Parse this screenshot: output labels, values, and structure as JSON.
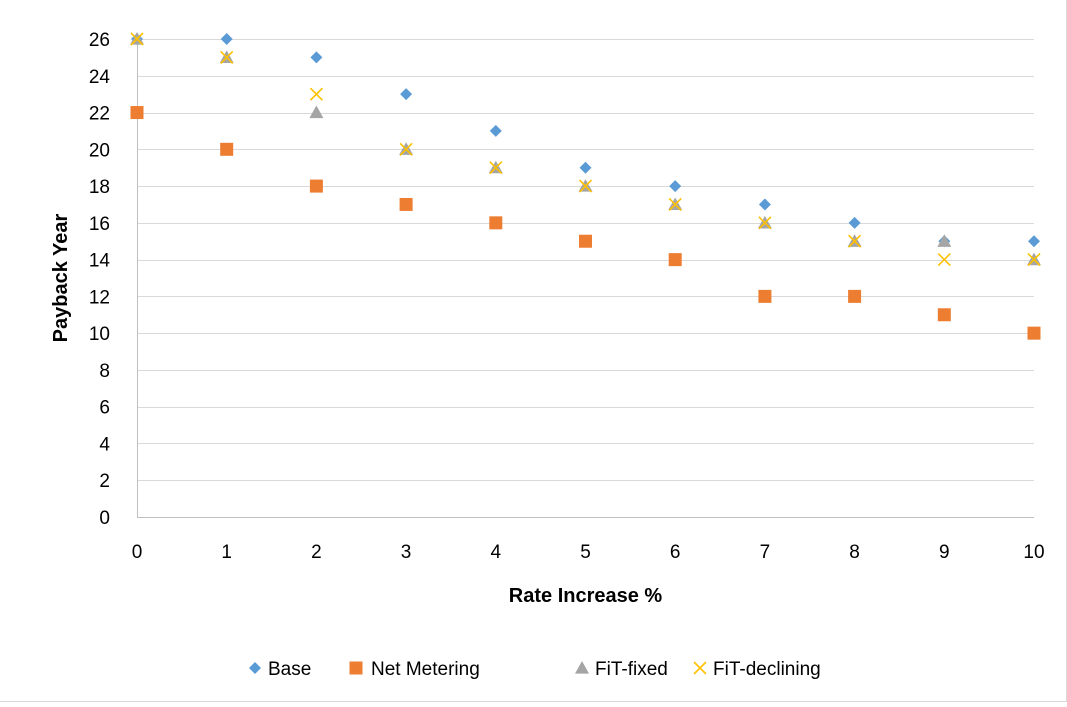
{
  "chart_data": {
    "type": "scatter",
    "title": "",
    "xlabel": "Rate Increase %",
    "ylabel": "Payback Year",
    "xlim": [
      0,
      10
    ],
    "ylim": [
      0,
      26
    ],
    "x_ticks": [
      0,
      1,
      2,
      3,
      4,
      5,
      6,
      7,
      8,
      9,
      10
    ],
    "y_ticks": [
      0,
      2,
      4,
      6,
      8,
      10,
      12,
      14,
      16,
      18,
      20,
      22,
      24,
      26
    ],
    "grid": "horizontal",
    "legend_position": "bottom",
    "x": [
      0,
      1,
      2,
      3,
      4,
      5,
      6,
      7,
      8,
      9,
      10
    ],
    "series": [
      {
        "name": "Base",
        "marker": "diamond",
        "color": "#5B9BD5",
        "values": [
          26,
          26,
          25,
          23,
          21,
          19,
          18,
          17,
          16,
          15,
          15
        ]
      },
      {
        "name": "Net Metering",
        "marker": "square",
        "color": "#ED7D31",
        "values": [
          22,
          20,
          18,
          17,
          16,
          15,
          14,
          12,
          12,
          11,
          10
        ]
      },
      {
        "name": "FiT-fixed",
        "marker": "triangle",
        "color": "#A5A5A5",
        "values": [
          26,
          25,
          22,
          20,
          19,
          18,
          17,
          16,
          15,
          15,
          14
        ]
      },
      {
        "name": "FiT-declining",
        "marker": "x",
        "color": "#FFC000",
        "values": [
          26,
          25,
          23,
          20,
          19,
          18,
          17,
          16,
          15,
          14,
          14
        ]
      }
    ]
  }
}
